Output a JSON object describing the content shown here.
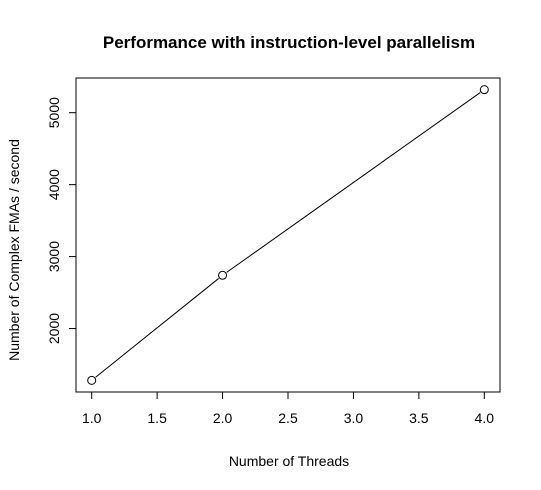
{
  "chart_data": {
    "type": "line",
    "title": "Performance with instruction-level parallelism",
    "xlabel": "Number of Threads",
    "ylabel": "Number of Complex FMAs / second",
    "x": [
      1,
      2,
      4
    ],
    "y": [
      1280,
      2740,
      5320
    ],
    "xlim": [
      0.88,
      4.12
    ],
    "ylim": [
      1118,
      5482
    ],
    "xticks": [
      1.0,
      1.5,
      2.0,
      2.5,
      3.0,
      3.5,
      4.0
    ],
    "xtick_labels": [
      "1.0",
      "1.5",
      "2.0",
      "2.5",
      "3.0",
      "3.5",
      "4.0"
    ],
    "yticks": [
      2000,
      3000,
      4000,
      5000
    ],
    "ytick_labels": [
      "2000",
      "3000",
      "4000",
      "5000"
    ],
    "grid": false,
    "legend": "none"
  }
}
